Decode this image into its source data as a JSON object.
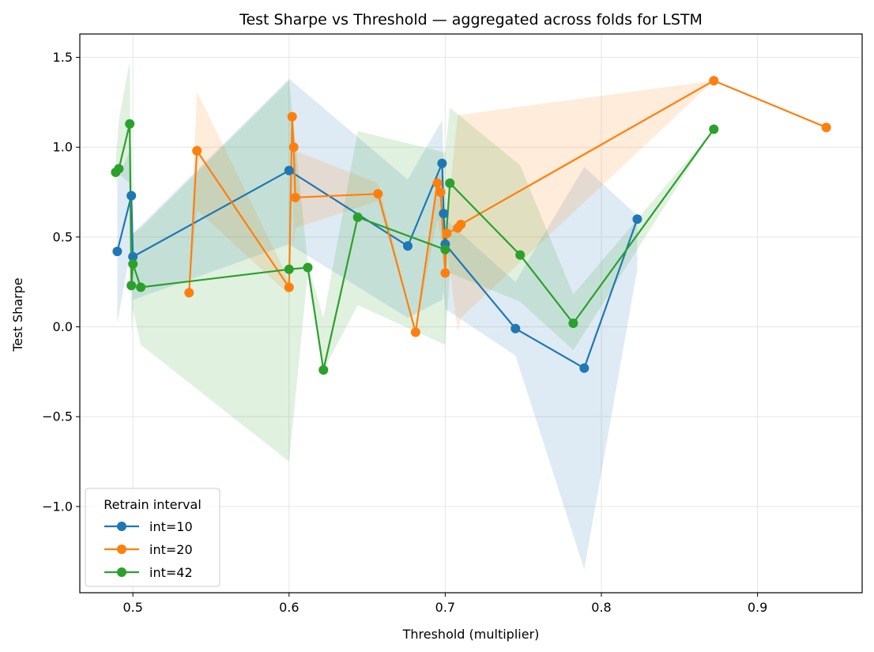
{
  "chart_data": {
    "type": "line",
    "title": "Test Sharpe vs Threshold — aggregated across folds for LSTM",
    "xlabel": "Threshold (multiplier)",
    "ylabel": "Test Sharpe",
    "xlim": [
      0.466,
      0.967
    ],
    "ylim": [
      -1.48,
      1.63
    ],
    "xticks": [
      0.5,
      0.6,
      0.7,
      0.8,
      0.9
    ],
    "xtick_labels": [
      "0.5",
      "0.6",
      "0.7",
      "0.8",
      "0.9"
    ],
    "yticks": [
      -1.0,
      -0.5,
      0.0,
      0.5,
      1.0,
      1.5
    ],
    "ytick_labels": [
      "−1.0",
      "−0.5",
      "0.0",
      "0.5",
      "1.0",
      "1.5"
    ],
    "grid": true,
    "legend": {
      "title": "Retrain interval",
      "placement": "lower-left"
    },
    "series": [
      {
        "name": "int=10",
        "color": "#1f77b4",
        "x": [
          0.49,
          0.499,
          0.5,
          0.6,
          0.676,
          0.698,
          0.699,
          0.7,
          0.745,
          0.789,
          0.823
        ],
        "y": [
          0.42,
          0.73,
          0.39,
          0.87,
          0.45,
          0.91,
          0.63,
          0.46,
          -0.01,
          -0.23,
          0.6
        ],
        "band_low": [
          0.02,
          0.45,
          0.15,
          0.46,
          0.05,
          0.15,
          0.2,
          0.1,
          -0.16,
          -1.35,
          0.32
        ],
        "band_high": [
          0.82,
          1.0,
          0.52,
          1.38,
          0.82,
          1.15,
          0.9,
          0.6,
          0.25,
          0.89,
          0.62
        ]
      },
      {
        "name": "int=20",
        "color": "#ff7f0e",
        "x": [
          0.536,
          0.541,
          0.6,
          0.602,
          0.603,
          0.604,
          0.657,
          0.681,
          0.695,
          0.697,
          0.7,
          0.701,
          0.708,
          0.71,
          0.872,
          0.944
        ],
        "y": [
          0.19,
          0.98,
          0.22,
          1.17,
          1.0,
          0.72,
          0.74,
          -0.03,
          0.8,
          0.75,
          0.3,
          0.52,
          0.55,
          0.57,
          1.37,
          1.11
        ],
        "band_low": [
          0.19,
          0.65,
          0.18,
          0.95,
          0.45,
          0.55,
          0.7,
          -0.03,
          0.6,
          0.5,
          0.25,
          0.45,
          -0.03,
          0.05,
          1.37,
          1.11
        ],
        "band_high": [
          0.19,
          1.31,
          0.26,
          1.17,
          1.0,
          0.98,
          0.8,
          -0.03,
          0.85,
          0.85,
          0.35,
          0.6,
          1.18,
          1.18,
          1.37,
          1.11
        ]
      },
      {
        "name": "int=42",
        "color": "#2ca02c",
        "x": [
          0.489,
          0.491,
          0.498,
          0.499,
          0.5,
          0.505,
          0.6,
          0.612,
          0.622,
          0.644,
          0.7,
          0.703,
          0.748,
          0.782,
          0.872
        ],
        "y": [
          0.86,
          0.88,
          1.13,
          0.23,
          0.35,
          0.22,
          0.32,
          0.33,
          -0.24,
          0.61,
          0.43,
          0.8,
          0.4,
          0.02,
          1.1
        ],
        "band_low": [
          0.8,
          0.85,
          0.8,
          -0.05,
          0.1,
          -0.1,
          -0.75,
          0.3,
          -0.24,
          0.12,
          -0.1,
          0.3,
          0.14,
          -0.13,
          1.1
        ],
        "band_high": [
          0.92,
          1.15,
          1.48,
          0.5,
          0.52,
          0.55,
          1.37,
          0.35,
          0.05,
          1.09,
          0.97,
          1.22,
          0.9,
          0.18,
          1.1
        ]
      }
    ]
  }
}
